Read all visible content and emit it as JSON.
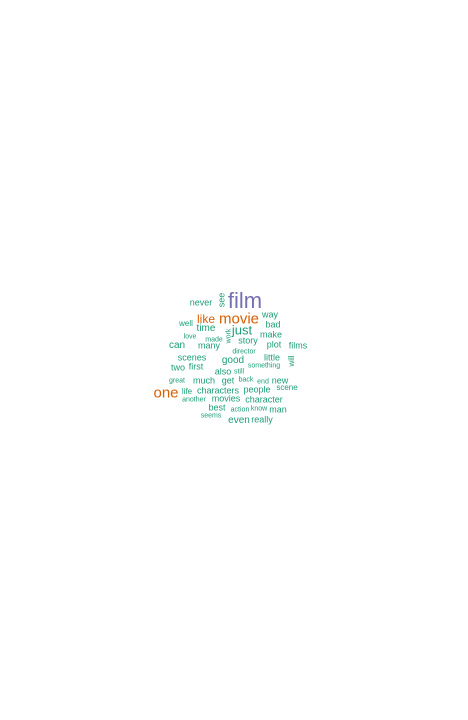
{
  "colors": {
    "purple": "#7570b3",
    "orange": "#d95f02",
    "teal": "#1b9e77"
  },
  "words": {
    "film": "film",
    "movie": "movie",
    "one": "one",
    "like": "like",
    "just": "just",
    "see": "see",
    "never": "never",
    "way": "way",
    "well": "well",
    "time": "time",
    "bad": "bad",
    "make": "make",
    "love": "love",
    "made": "made",
    "can": "can",
    "many": "many",
    "story": "story",
    "plot": "plot",
    "films": "films",
    "director": "director",
    "scenes": "scenes",
    "good": "good",
    "little": "little",
    "will": "will",
    "two": "two",
    "first": "first",
    "something": "something",
    "also": "also",
    "still": "still",
    "great": "great",
    "much": "much",
    "get": "get",
    "back": "back",
    "end": "end",
    "new": "new",
    "life": "life",
    "characters": "characters",
    "people": "people",
    "scene": "scene",
    "another": "another",
    "movies": "movies",
    "character": "character",
    "best": "best",
    "action": "action",
    "know": "know",
    "man": "man",
    "seems": "seems",
    "even": "even",
    "really": "really",
    "work": "work"
  }
}
